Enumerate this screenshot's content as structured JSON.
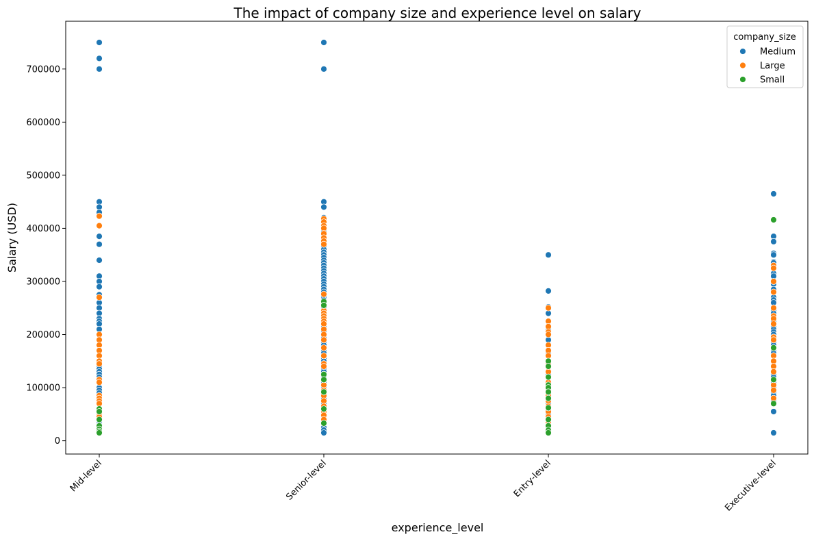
{
  "chart_data": {
    "type": "scatter",
    "title": "The impact of company size and experience level on salary",
    "xlabel": "experience_level",
    "ylabel": "Salary (USD)",
    "categories": [
      "Mid-level",
      "Senior-level",
      "Entry-level",
      "Executive-level"
    ],
    "ylim": [
      -25000,
      790000
    ],
    "yticks": [
      0,
      100000,
      200000,
      300000,
      400000,
      500000,
      600000,
      700000
    ],
    "ytick_labels": [
      "0",
      "100000",
      "200000",
      "300000",
      "400000",
      "500000",
      "600000",
      "700000"
    ],
    "legend": {
      "title": "company_size",
      "position": "top-right"
    },
    "series": [
      {
        "name": "Medium",
        "color": "#1f77b4",
        "points": {
          "Mid-level": [
            750000,
            720000,
            700000,
            450000,
            440000,
            430000,
            405000,
            385000,
            370000,
            340000,
            310000,
            300000,
            290000,
            275000,
            260000,
            250000,
            240000,
            230000,
            225000,
            220000,
            210000,
            200000,
            190000,
            180000,
            170000,
            140000,
            135000,
            130000,
            125000,
            120000,
            115000,
            110000,
            100000,
            95000,
            90000,
            80000,
            60000,
            40000,
            35000,
            30000,
            25000,
            20000
          ],
          "Senior-level": [
            750000,
            700000,
            450000,
            440000,
            420000,
            410000,
            400000,
            395000,
            390000,
            380000,
            370000,
            365000,
            360000,
            355000,
            350000,
            345000,
            340000,
            335000,
            330000,
            325000,
            320000,
            315000,
            310000,
            305000,
            300000,
            295000,
            290000,
            285000,
            280000,
            270000,
            265000,
            255000,
            250000,
            245000,
            240000,
            235000,
            230000,
            225000,
            220000,
            215000,
            210000,
            205000,
            200000,
            195000,
            190000,
            185000,
            180000,
            175000,
            170000,
            165000,
            160000,
            155000,
            150000,
            145000,
            140000,
            135000,
            130000,
            125000,
            120000,
            115000,
            110000,
            105000,
            100000,
            95000,
            90000,
            85000,
            80000,
            70000,
            60000,
            45000,
            35000,
            25000,
            20000,
            15000
          ],
          "Entry-level": [
            350000,
            282000,
            252000,
            240000,
            225000,
            210000,
            200000,
            190000,
            180000,
            170000,
            165000,
            160000,
            150000,
            140000,
            130000,
            125000,
            120000,
            110000,
            100000,
            90000,
            80000,
            70000,
            60000,
            50000,
            40000,
            30000,
            25000,
            20000
          ],
          "Executive-level": [
            465000,
            385000,
            375000,
            353000,
            350000,
            337000,
            335000,
            325000,
            315000,
            310000,
            300000,
            295000,
            285000,
            270000,
            265000,
            260000,
            250000,
            245000,
            240000,
            230000,
            225000,
            215000,
            210000,
            205000,
            200000,
            195000,
            185000,
            180000,
            175000,
            170000,
            165000,
            160000,
            150000,
            140000,
            130000,
            125000,
            120000,
            110000,
            100000,
            95000,
            90000,
            85000,
            75000,
            55000,
            15000
          ]
        }
      },
      {
        "name": "Large",
        "color": "#ff7f0e",
        "points": {
          "Mid-level": [
            423000,
            405000,
            270000,
            200000,
            190000,
            180000,
            170000,
            160000,
            150000,
            145000,
            115000,
            110000,
            85000,
            80000,
            75000,
            70000,
            50000,
            45000
          ],
          "Senior-level": [
            418000,
            412000,
            405000,
            400000,
            390000,
            382000,
            376000,
            370000,
            276000,
            255000,
            245000,
            240000,
            235000,
            230000,
            225000,
            220000,
            210000,
            200000,
            190000,
            175000,
            160000,
            145000,
            140000,
            125000,
            115000,
            105000,
            95000,
            85000,
            75000,
            65000,
            55000,
            48000,
            40000
          ],
          "Entry-level": [
            250000,
            225000,
            215000,
            205000,
            200000,
            180000,
            170000,
            160000,
            145000,
            130000,
            120000,
            110000,
            100000,
            95000,
            85000,
            75000,
            65000,
            55000,
            45000,
            35000
          ],
          "Executive-level": [
            330000,
            325000,
            300000,
            280000,
            250000,
            235000,
            230000,
            220000,
            195000,
            190000,
            175000,
            160000,
            150000,
            140000,
            130000,
            115000,
            105000,
            95000,
            80000
          ]
        }
      },
      {
        "name": "Small",
        "color": "#2ca02c",
        "points": {
          "Mid-level": [
            60000,
            55000,
            40000,
            28000,
            22000,
            18000,
            15000
          ],
          "Senior-level": [
            262000,
            255000,
            125000,
            115000,
            92000,
            60000,
            33000
          ],
          "Entry-level": [
            150000,
            140000,
            120000,
            105000,
            100000,
            92000,
            80000,
            62000,
            40000,
            28000,
            20000,
            15000
          ],
          "Executive-level": [
            416000,
            175000,
            115000,
            70000
          ]
        }
      }
    ]
  }
}
